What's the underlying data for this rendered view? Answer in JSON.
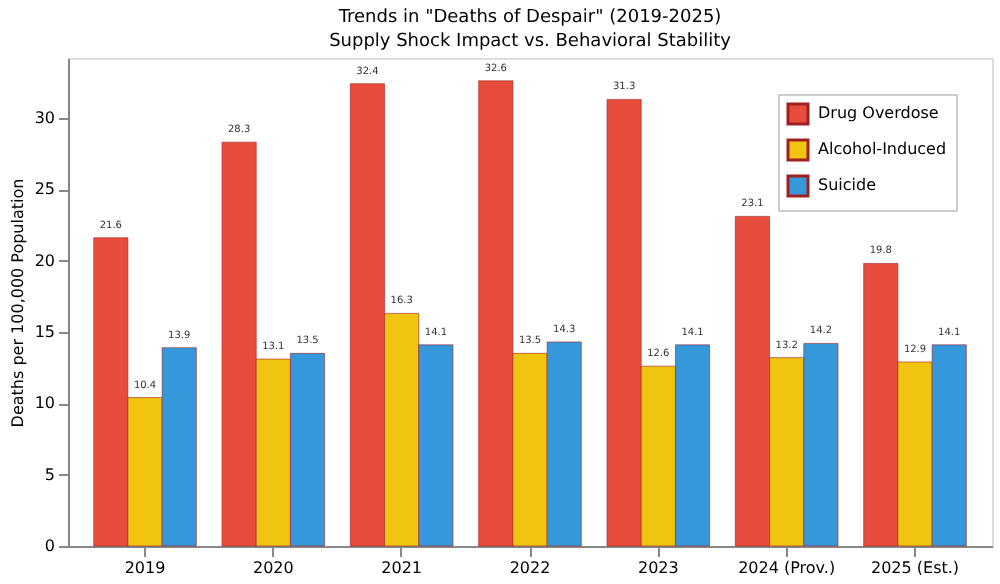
{
  "chart_data": {
    "type": "bar",
    "title": "Trends in \"Deaths of Despair\" (2019-2025)",
    "subtitle": "Supply Shock Impact vs. Behavioral Stability",
    "ylabel": "Deaths per 100,000 Population",
    "categories": [
      "2019",
      "2020",
      "2021",
      "2022",
      "2023",
      "2024 (Prov.)",
      "2025 (Est.)"
    ],
    "series": [
      {
        "name": "Drug Overdose",
        "color": "#e84c3d",
        "values": [
          21.6,
          28.3,
          32.4,
          32.6,
          31.3,
          23.1,
          19.8
        ]
      },
      {
        "name": "Alcohol-Induced",
        "color": "#f1c40f",
        "values": [
          10.4,
          13.1,
          16.3,
          13.5,
          12.6,
          13.2,
          12.9
        ]
      },
      {
        "name": "Suicide",
        "color": "#3498db",
        "values": [
          13.9,
          13.5,
          14.1,
          14.3,
          14.1,
          14.2,
          14.1
        ]
      }
    ],
    "ylim": [
      0,
      34.2
    ],
    "yticks": [
      0,
      5,
      10,
      15,
      20,
      25,
      30
    ],
    "grid": false,
    "legend": "top right",
    "data_labels": true
  }
}
